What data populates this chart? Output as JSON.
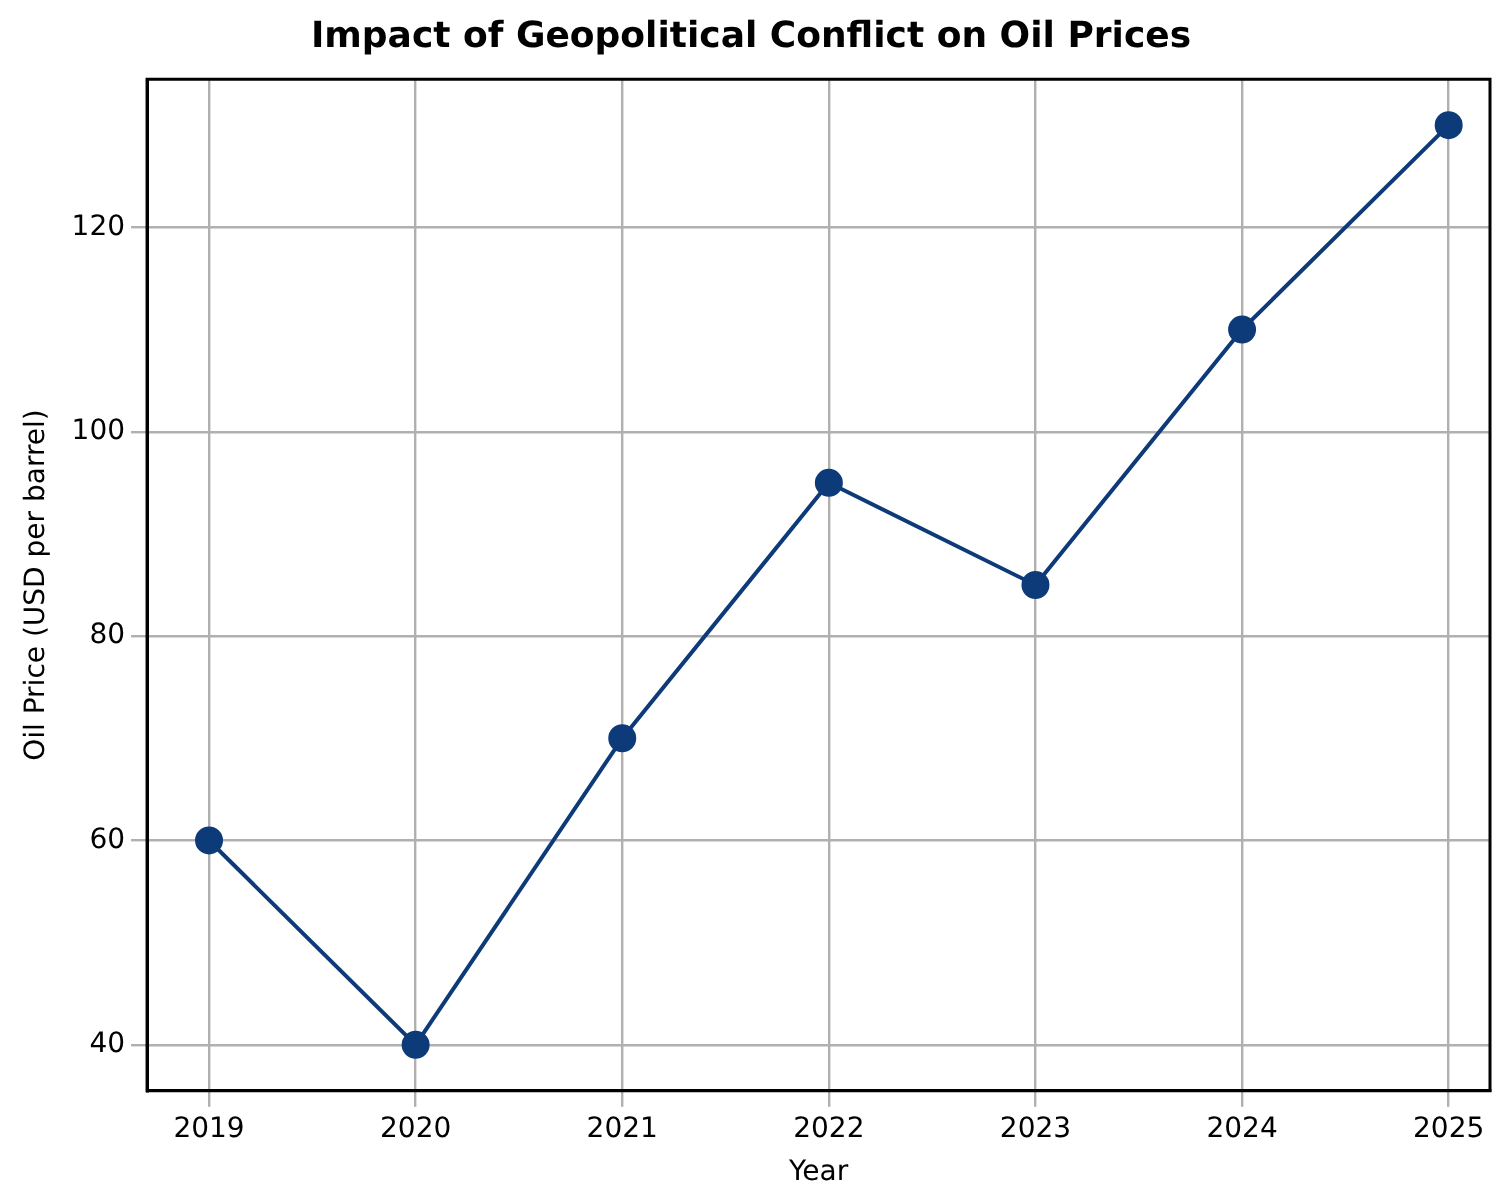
{
  "chart_data": {
    "type": "line",
    "title": "Impact of Geopolitical Conflict on Oil Prices",
    "xlabel": "Year",
    "ylabel": "Oil Price (USD per barrel)",
    "x": [
      2019,
      2020,
      2021,
      2022,
      2023,
      2024,
      2025
    ],
    "series": [
      {
        "color": "#0d3a78",
        "values": [
          60,
          40,
          70,
          95,
          85,
          110,
          130
        ]
      }
    ],
    "xlim": [
      2018.7,
      2025.2
    ],
    "xticks": [
      2019,
      2020,
      2021,
      2022,
      2023,
      2024,
      2025
    ],
    "ylim": [
      35.5,
      134.5
    ],
    "yticks": [
      40,
      60,
      80,
      100,
      120
    ],
    "grid": true,
    "marker": "circle",
    "line_style": "solid"
  }
}
